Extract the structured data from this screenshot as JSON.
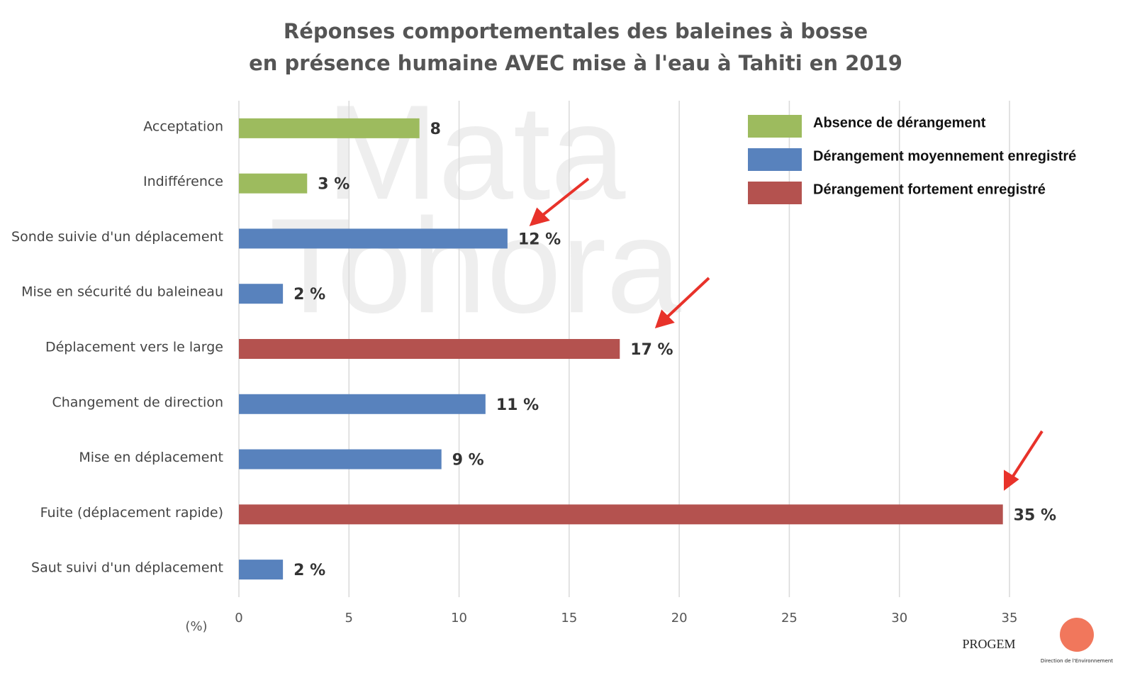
{
  "chart_data": {
    "type": "barh",
    "title": [
      "Réponses comportementales des baleines à bosse",
      "en présence humaine AVEC mise à l'eau à Tahiti en 2019"
    ],
    "categories": [
      "Acceptation",
      "Indifférence",
      "Sonde suivie d'un déplacement",
      "Mise en sécurité du baleineau",
      "Déplacement vers le large",
      "Changement de direction",
      "Mise en déplacement",
      "Fuite (déplacement rapide)",
      "Saut suivi d'un déplacement"
    ],
    "series": [
      {
        "name": "Absence de dérangement",
        "color": "#9dbb5e",
        "values": [
          8.2,
          3.1,
          null,
          null,
          null,
          null,
          null,
          null,
          null
        ],
        "value_labels": [
          "8",
          "3 %",
          null,
          null,
          null,
          null,
          null,
          null,
          null
        ]
      },
      {
        "name": "Dérangement moyennement enregistré",
        "color": "#5882bd",
        "values": [
          null,
          null,
          12.2,
          2.0,
          null,
          11.2,
          9.2,
          null,
          2.0
        ],
        "value_labels": [
          null,
          null,
          "12 %",
          "2 %",
          null,
          "11 %",
          "9 %",
          null,
          "2 %"
        ]
      },
      {
        "name": "Dérangement fortement enregistré",
        "color": "#b4524f",
        "values": [
          null,
          null,
          null,
          null,
          17.3,
          null,
          null,
          34.7,
          null
        ],
        "value_labels": [
          null,
          null,
          null,
          null,
          "17 %",
          null,
          null,
          "35 %",
          null
        ]
      }
    ],
    "xlim": [
      0,
      35
    ],
    "xticks": [
      0,
      5,
      10,
      15,
      20,
      25,
      30,
      35
    ],
    "xlabel": "(%)",
    "grid": true,
    "legend": "top-right",
    "watermark": [
      "Mata",
      "Tohora"
    ],
    "logos": [
      "PROGEM",
      "Direction de l'Environnement"
    ]
  }
}
